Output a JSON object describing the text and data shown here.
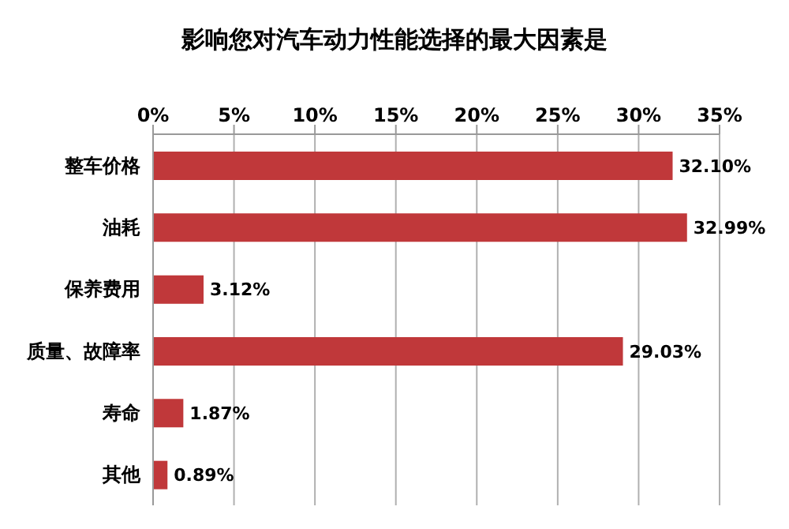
{
  "chart_data": {
    "type": "bar",
    "orientation": "horizontal",
    "title": "影响您对汽车动力性能选择的最大因素是",
    "categories": [
      "整车价格",
      "油耗",
      "保养费用",
      "质量、故障率",
      "寿命",
      "其他"
    ],
    "values": [
      32.1,
      32.99,
      3.12,
      29.03,
      1.87,
      0.89
    ],
    "value_labels": [
      "32.10%",
      "32.99%",
      "3.12%",
      "29.03%",
      "1.87%",
      "0.89%"
    ],
    "color": "#c0383a",
    "xlim": [
      0,
      35
    ],
    "xticks": [
      {
        "value": 0,
        "label": "0%"
      },
      {
        "value": 5,
        "label": "5%"
      },
      {
        "value": 10,
        "label": "10%"
      },
      {
        "value": 15,
        "label": "15%"
      },
      {
        "value": 20,
        "label": "20%"
      },
      {
        "value": 25,
        "label": "25%"
      },
      {
        "value": 30,
        "label": "30%"
      },
      {
        "value": 35,
        "label": "35%"
      }
    ],
    "grid": "x",
    "legend": false
  }
}
